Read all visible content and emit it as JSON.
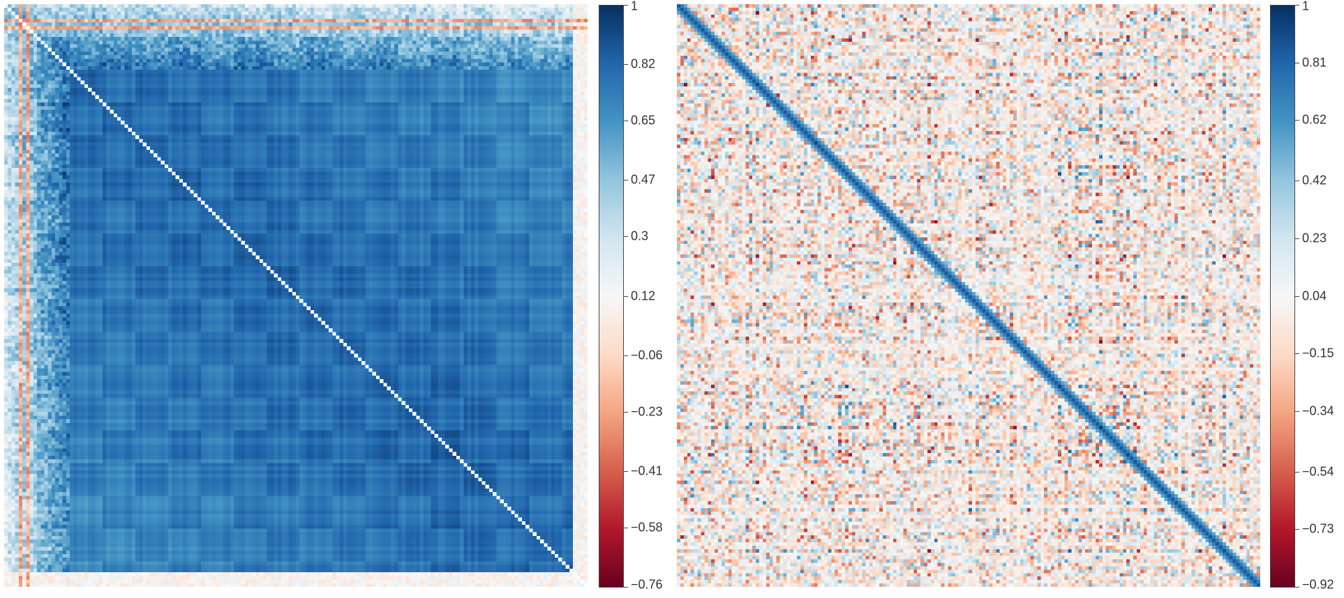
{
  "chart_data": [
    {
      "type": "heatmap",
      "title": "",
      "xlabel": "",
      "ylabel": "",
      "description_pattern": "strong positive correlation block with checkerboard structure, negative stripes near top-left",
      "matrix_size": 160,
      "colorbar": {
        "min": -0.76,
        "max": 1,
        "ticks": [
          "1",
          "0.82",
          "0.65",
          "0.47",
          "0.3",
          "0.12",
          "−0.06",
          "−0.23",
          "−0.41",
          "−0.58",
          "−0.76"
        ],
        "tick_values": [
          1,
          0.82,
          0.65,
          0.47,
          0.3,
          0.12,
          -0.06,
          -0.23,
          -0.41,
          -0.58,
          -0.76
        ],
        "colormap": "RdBu"
      }
    },
    {
      "type": "heatmap",
      "title": "",
      "xlabel": "",
      "ylabel": "",
      "matrix_size": 170,
      "colorbar": {
        "min": -0.92,
        "max": 1,
        "ticks": [
          "1",
          "0.81",
          "0.62",
          "0.42",
          "0.23",
          "0.04",
          "−0.15",
          "−0.34",
          "−0.54",
          "−0.73",
          "−0.92"
        ],
        "tick_values": [
          1,
          0.81,
          0.62,
          0.42,
          0.23,
          0.04,
          -0.15,
          -0.34,
          -0.54,
          -0.73,
          -0.92
        ],
        "colormap": "RdBu"
      }
    }
  ],
  "colors": {
    "rdbu": [
      "#67001f",
      "#b2182b",
      "#d6604d",
      "#f4a582",
      "#fddbc7",
      "#f7f7f7",
      "#d1e5f0",
      "#92c5de",
      "#4393c3",
      "#2166ac",
      "#053061"
    ]
  }
}
